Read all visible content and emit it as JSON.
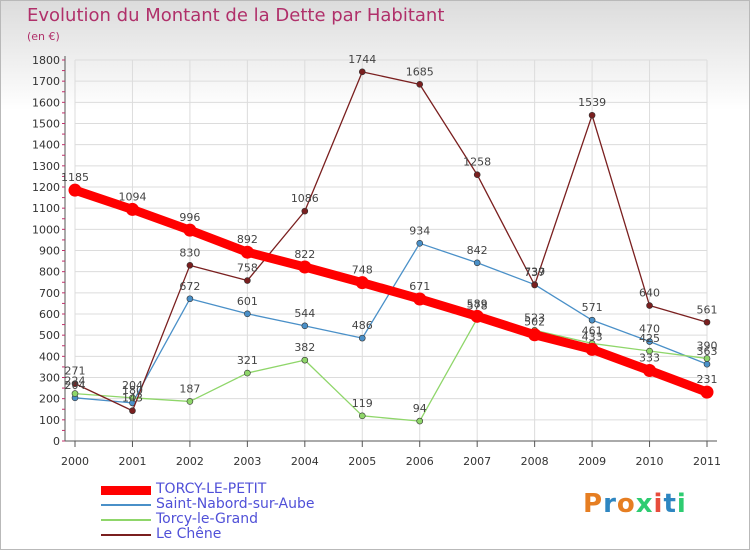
{
  "title": "Evolution du Montant de la Dette par Habitant",
  "subtitle": "(en €)",
  "logo": {
    "text": "Proxiti",
    "colors": [
      "#e67e22",
      "#2e86c1",
      "#e67e22",
      "#2ecc71",
      "#e74c3c",
      "#2e86c1",
      "#2ecc71"
    ]
  },
  "chart_data": {
    "type": "line",
    "x": [
      "2000",
      "2001",
      "2002",
      "2003",
      "2004",
      "2005",
      "2006",
      "2007",
      "2008",
      "2009",
      "2010",
      "2011"
    ],
    "ylim": [
      0,
      1800
    ],
    "yticks": [
      0,
      100,
      200,
      300,
      400,
      500,
      600,
      700,
      800,
      900,
      1000,
      1100,
      1200,
      1300,
      1400,
      1500,
      1600,
      1700,
      1800
    ],
    "grid": true,
    "legend_position": "bottom-left",
    "series": [
      {
        "name": "TORCY-LE-PETIT",
        "color": "#ff0000",
        "values": [
          1185,
          1094,
          996,
          892,
          822,
          748,
          671,
          589,
          502,
          433,
          333,
          231
        ]
      },
      {
        "name": "Saint-Nabord-sur-Aube",
        "color": "#4a90c8",
        "values": [
          204,
          180,
          672,
          601,
          544,
          486,
          934,
          842,
          739,
          571,
          470,
          363
        ]
      },
      {
        "name": "Torcy-le-Grand",
        "color": "#8fd66a",
        "values": [
          224,
          204,
          187,
          321,
          382,
          119,
          94,
          578,
          523,
          461,
          425,
          390
        ]
      },
      {
        "name": "Le Chêne",
        "color": "#7a1f1f",
        "values": [
          271,
          143,
          830,
          758,
          1086,
          1744,
          1685,
          1258,
          737,
          1539,
          640,
          561
        ]
      }
    ]
  }
}
